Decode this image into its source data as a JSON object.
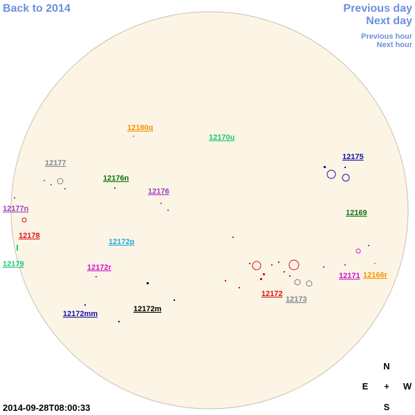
{
  "nav": {
    "back": "Back to 2014",
    "previous_day": "Previous day",
    "next_day": "Next day",
    "previous_hour": "Previous hour",
    "next_hour": "Next hour"
  },
  "regions": [
    {
      "label": "12180q",
      "color": "#f09400"
    },
    {
      "label": "12170u",
      "color": "#18c878"
    },
    {
      "label": "12177",
      "color": "#808890"
    },
    {
      "label": "12176n",
      "color": "#107010"
    },
    {
      "label": "12176",
      "color": "#9a3cc8"
    },
    {
      "label": "12175",
      "color": "#1010b0"
    },
    {
      "label": "12169",
      "color": "#107010"
    },
    {
      "label": "12177n",
      "color": "#9a3cc8"
    },
    {
      "label": "12178",
      "color": "#e01010"
    },
    {
      "label": "12172p",
      "color": "#20a8e0"
    },
    {
      "label": "12179",
      "color": "#18c878"
    },
    {
      "label": "12172r",
      "color": "#d010d0"
    },
    {
      "label": "12171",
      "color": "#d010d0"
    },
    {
      "label": "12166r",
      "color": "#f09400"
    },
    {
      "label": "12172",
      "color": "#e01010"
    },
    {
      "label": "12173",
      "color": "#808890"
    },
    {
      "label": "12172mm",
      "color": "#1010b0"
    },
    {
      "label": "12172m",
      "color": "#000000"
    }
  ],
  "compass": {
    "north": "N",
    "east": "E",
    "center": "+",
    "west": "W",
    "south": "S"
  },
  "timestamp": "2014-09-28T08:00:33"
}
